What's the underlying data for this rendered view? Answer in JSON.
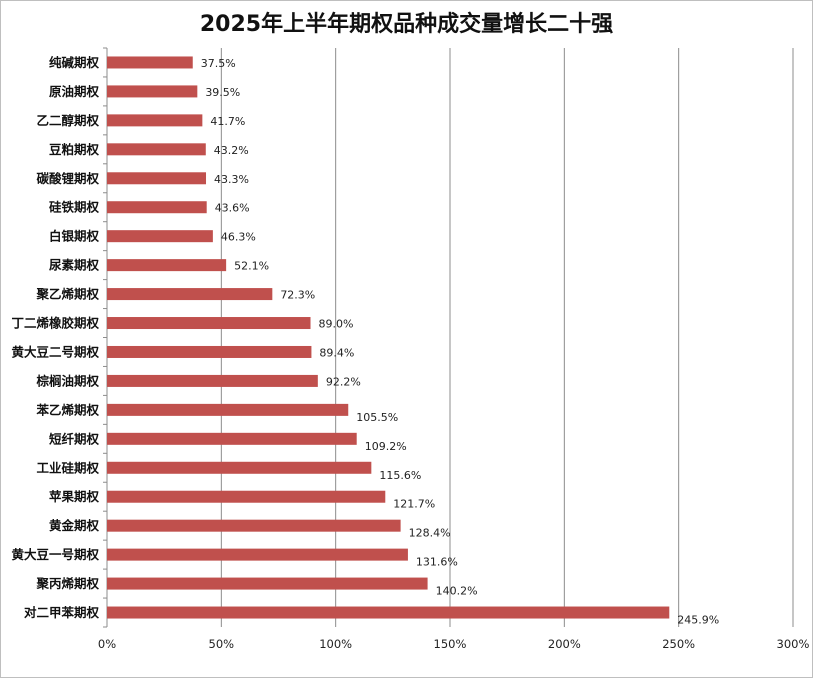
{
  "chart_data": {
    "type": "bar",
    "orientation": "horizontal",
    "title": "2025年上半年期权品种成交量增长二十强",
    "categories": [
      "纯碱期权",
      "原油期权",
      "乙二醇期权",
      "豆粕期权",
      "碳酸锂期权",
      "硅铁期权",
      "白银期权",
      "尿素期权",
      "聚乙烯期权",
      "丁二烯橡胶期权",
      "黄大豆二号期权",
      "棕榈油期权",
      "苯乙烯期权",
      "短纤期权",
      "工业硅期权",
      "苹果期权",
      "黄金期权",
      "黄大豆一号期权",
      "聚丙烯期权",
      "对二甲苯期权"
    ],
    "values": [
      37.5,
      39.5,
      41.7,
      43.2,
      43.3,
      43.6,
      46.3,
      52.1,
      72.3,
      89.0,
      89.4,
      92.2,
      105.5,
      109.2,
      115.6,
      121.7,
      128.4,
      131.6,
      140.2,
      245.9
    ],
    "data_labels": [
      "37.5%",
      "39.5%",
      "41.7%",
      "43.2%",
      "43.3%",
      "43.6%",
      "46.3%",
      "52.1%",
      "72.3%",
      "89.0%",
      "89.4%",
      "92.2%",
      "105.5%",
      "109.2%",
      "115.6%",
      "121.7%",
      "128.4%",
      "131.6%",
      "140.2%",
      "245.9%"
    ],
    "xticks": [
      "0%",
      "50%",
      "100%",
      "150%",
      "200%",
      "250%",
      "300%"
    ],
    "xlim": [
      0,
      300
    ],
    "unit": "%",
    "grid": "vertical",
    "bar_color": "#c0504d",
    "grid_color": "#8c8c8c"
  }
}
